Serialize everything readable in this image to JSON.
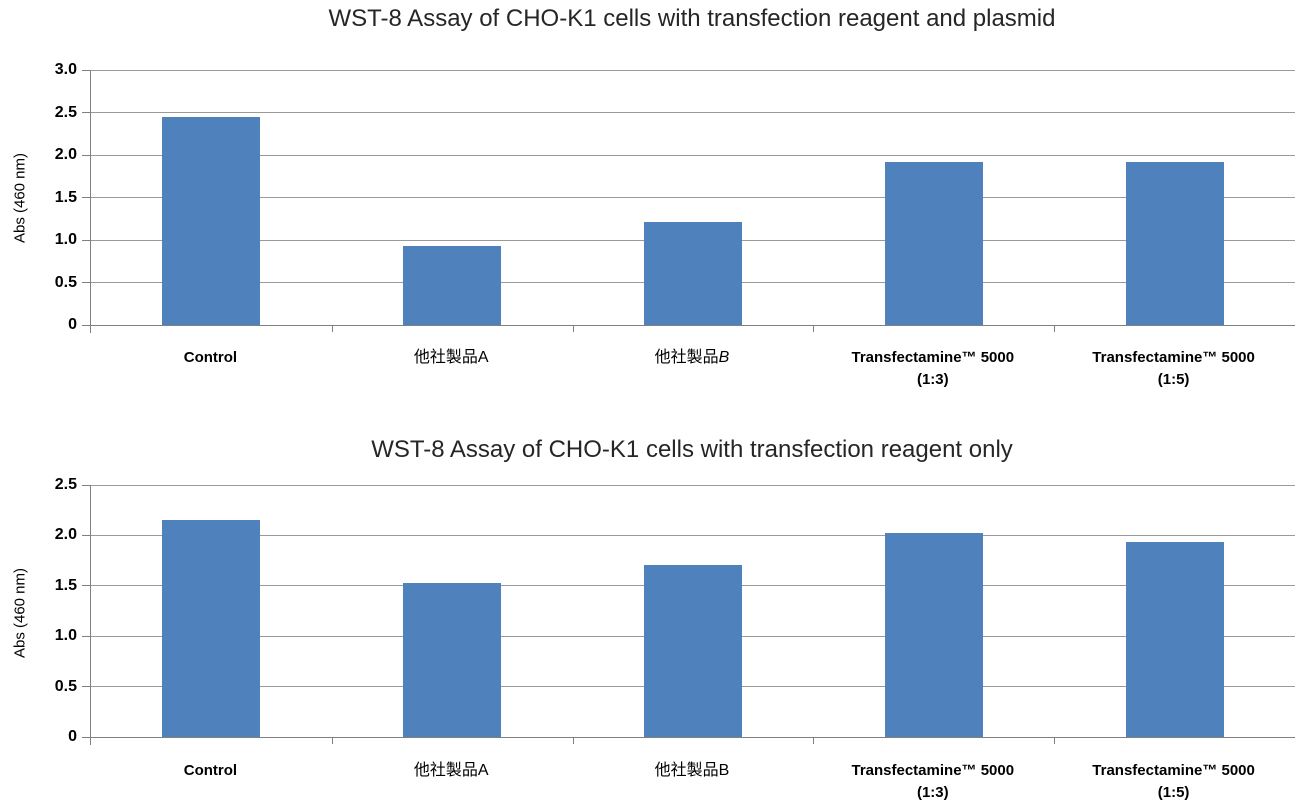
{
  "colors": {
    "bar": "#4F81BD",
    "gridline": "#9A9A9A",
    "axis": "#808080",
    "title_text": "#262626",
    "label_text": "#000000"
  },
  "chart_data": [
    {
      "type": "bar",
      "title": "WST-8 Assay of CHO-K1 cells with transfection reagent and plasmid",
      "ylabel": "Abs (460 nm)",
      "xlabel": "",
      "ylim": [
        0,
        3.0
      ],
      "yticks": [
        "0",
        "0.5",
        "1.0",
        "1.5",
        "2.0",
        "2.5",
        "3.0"
      ],
      "grid": true,
      "legend": false,
      "bar_color": "#4F81BD",
      "categories": [
        {
          "name": "Control",
          "bold": true,
          "lines": [
            [
              {
                "t": "Control"
              }
            ]
          ]
        },
        {
          "name": "他社製品A",
          "bold": false,
          "lines": [
            [
              {
                "t": "他社製品A"
              }
            ]
          ]
        },
        {
          "name": "他社製品B",
          "bold": false,
          "lines": [
            [
              {
                "t": "他社製品"
              },
              {
                "t": "B",
                "i": true
              }
            ]
          ]
        },
        {
          "name": "Transfectamine™ 5000 (1:3)",
          "bold": true,
          "lines": [
            [
              {
                "t": "Transfectamine™ 5000"
              }
            ],
            [
              {
                "t": "(1:3)"
              }
            ]
          ]
        },
        {
          "name": "Transfectamine™ 5000 (1:5)",
          "bold": true,
          "lines": [
            [
              {
                "t": "Transfectamine™ 5000"
              }
            ],
            [
              {
                "t": "(1:5)"
              }
            ]
          ]
        }
      ],
      "values": [
        2.45,
        0.93,
        1.21,
        1.92,
        1.92
      ]
    },
    {
      "type": "bar",
      "title": "WST-8 Assay of CHO-K1 cells with transfection reagent only",
      "ylabel": "Abs (460 nm)",
      "xlabel": "",
      "ylim": [
        0,
        2.5
      ],
      "yticks": [
        "0",
        "0.5",
        "1.0",
        "1.5",
        "2.0",
        "2.5"
      ],
      "grid": true,
      "legend": false,
      "bar_color": "#4F81BD",
      "categories": [
        {
          "name": "Control",
          "bold": true,
          "lines": [
            [
              {
                "t": "Control"
              }
            ]
          ]
        },
        {
          "name": "他社製品A",
          "bold": false,
          "lines": [
            [
              {
                "t": "他社製品A"
              }
            ]
          ]
        },
        {
          "name": "他社製品B",
          "bold": false,
          "lines": [
            [
              {
                "t": "他社製品B"
              }
            ]
          ]
        },
        {
          "name": "Transfectamine™ 5000 (1:3)",
          "bold": true,
          "lines": [
            [
              {
                "t": "Transfectamine™ 5000"
              }
            ],
            [
              {
                "t": "(1:3)"
              }
            ]
          ]
        },
        {
          "name": "Transfectamine™ 5000 (1:5)",
          "bold": true,
          "lines": [
            [
              {
                "t": "Transfectamine™ 5000"
              }
            ],
            [
              {
                "t": "(1:5)"
              }
            ]
          ]
        }
      ],
      "values": [
        2.15,
        1.53,
        1.71,
        2.02,
        1.93
      ]
    }
  ]
}
